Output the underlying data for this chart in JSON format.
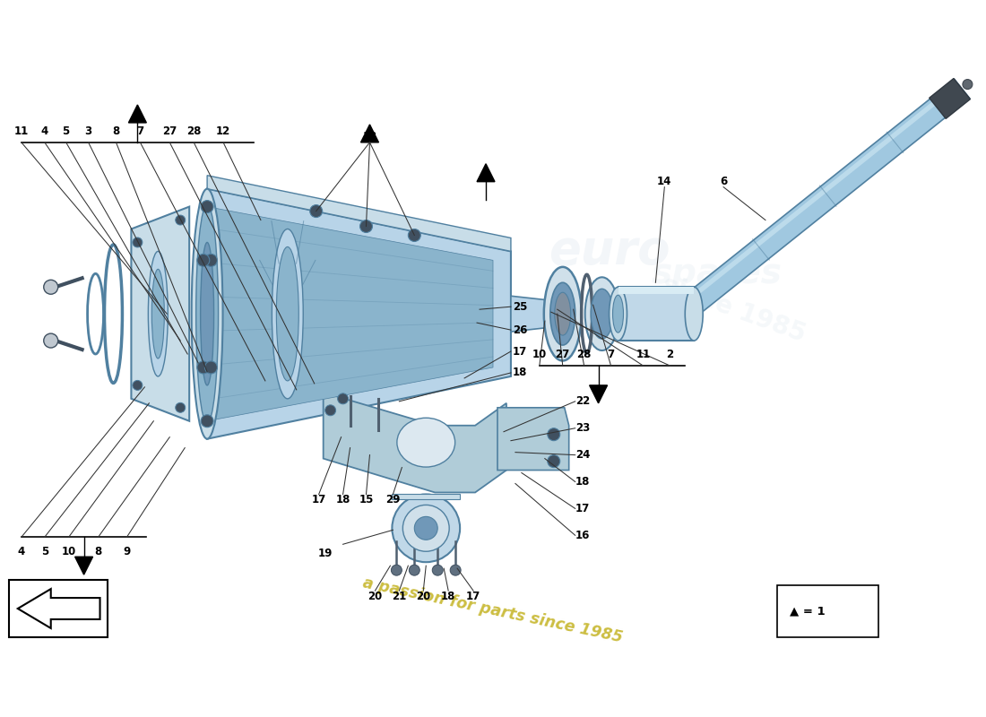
{
  "background_color": "#ffffff",
  "watermark_text": "a passion for parts since 1985",
  "watermark_color": "#c8b832",
  "legend_text": "▲ = 1",
  "housing_fill": "#b8d4e8",
  "housing_edge": "#5080a0",
  "housing_dark": "#7098b8",
  "housing_inner": "#8ab4cc",
  "shaft_fill": "#a0c8e0",
  "parts_fill": "#c8dde8",
  "ring_fill": "#d0e0ea",
  "cap_fill": "#c0d8e8",
  "dark_part": "#607888",
  "bracket_fill": "#b0ccd8",
  "label_fs": 8.5,
  "label_color": "#000000"
}
